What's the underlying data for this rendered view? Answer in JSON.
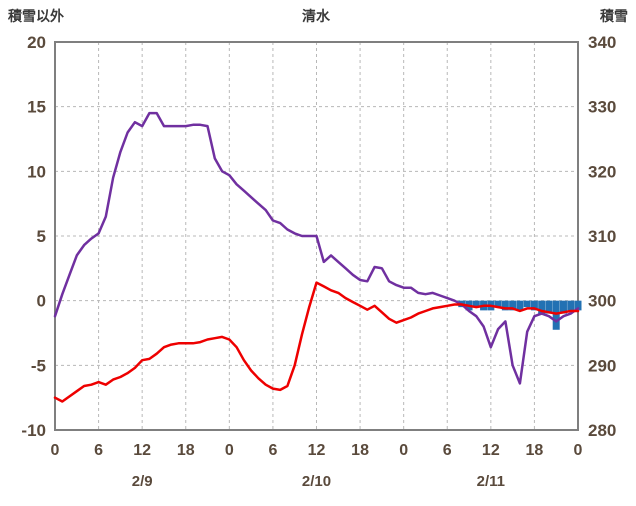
{
  "header": {
    "left": "積雪以外",
    "center": "清水",
    "right": "積雪"
  },
  "colors": {
    "purple_line": "#7030a0",
    "red_line": "#ee0000",
    "snow_bar": "#2271b3",
    "grid": "#b8b8b8",
    "frame": "#7f7f7f",
    "tick_text": "#5a4a3c",
    "background": "#ffffff"
  },
  "chart_data": {
    "type": "line",
    "title": "清水",
    "left_axis": {
      "label": "積雪以外",
      "min": -10,
      "max": 20,
      "tick_step": 5,
      "ticks": [
        20,
        15,
        10,
        5,
        0,
        -5,
        -10
      ]
    },
    "right_axis": {
      "label": "積雪",
      "min": 280,
      "max": 340,
      "tick_step": 10,
      "ticks": [
        340,
        330,
        320,
        310,
        300,
        290,
        280
      ]
    },
    "x_axis": {
      "hours_total": 72,
      "tick_step": 6,
      "tick_labels": [
        "0",
        "6",
        "12",
        "18",
        "0",
        "6",
        "12",
        "18",
        "0",
        "6",
        "12",
        "18",
        "0"
      ],
      "date_labels": [
        {
          "label": "2/9",
          "hour": 12
        },
        {
          "label": "2/10",
          "hour": 36
        },
        {
          "label": "2/11",
          "hour": 60
        }
      ],
      "grid": true
    },
    "series": [
      {
        "name": "purple-line",
        "type": "line",
        "axis": "left",
        "color": "#7030a0",
        "values": [
          -1.2,
          0.5,
          2.0,
          3.5,
          4.3,
          4.8,
          5.2,
          6.5,
          9.5,
          11.5,
          13.0,
          13.8,
          13.5,
          14.5,
          14.5,
          13.5,
          13.5,
          13.5,
          13.5,
          13.6,
          13.6,
          13.5,
          11.0,
          10.0,
          9.7,
          9.0,
          8.5,
          8.0,
          7.5,
          7.0,
          6.2,
          6.0,
          5.5,
          5.2,
          5.0,
          5.0,
          5.0,
          3.0,
          3.5,
          3.0,
          2.5,
          2.0,
          1.6,
          1.5,
          2.6,
          2.5,
          1.5,
          1.2,
          1.0,
          1.0,
          0.6,
          0.5,
          0.6,
          0.4,
          0.2,
          0.0,
          -0.3,
          -0.8,
          -1.2,
          -2.0,
          -3.6,
          -2.2,
          -1.6,
          -5.0,
          -6.4,
          -2.4,
          -1.2,
          -1.0,
          -1.2,
          -1.6,
          -1.2,
          -1.0,
          -0.6
        ]
      },
      {
        "name": "red-line",
        "type": "line",
        "axis": "left",
        "color": "#ee0000",
        "values": [
          -7.5,
          -7.8,
          -7.4,
          -7.0,
          -6.6,
          -6.5,
          -6.3,
          -6.5,
          -6.1,
          -5.9,
          -5.6,
          -5.2,
          -4.6,
          -4.5,
          -4.1,
          -3.6,
          -3.4,
          -3.3,
          -3.3,
          -3.3,
          -3.2,
          -3.0,
          -2.9,
          -2.8,
          -3.0,
          -3.6,
          -4.6,
          -5.4,
          -6.0,
          -6.5,
          -6.8,
          -6.9,
          -6.6,
          -5.0,
          -2.6,
          -0.5,
          1.4,
          1.1,
          0.8,
          0.6,
          0.2,
          -0.1,
          -0.4,
          -0.7,
          -0.4,
          -0.9,
          -1.4,
          -1.7,
          -1.5,
          -1.3,
          -1.0,
          -0.8,
          -0.6,
          -0.5,
          -0.4,
          -0.3,
          -0.3,
          -0.4,
          -0.5,
          -0.4,
          -0.4,
          -0.5,
          -0.6,
          -0.6,
          -0.8,
          -0.6,
          -0.6,
          -0.8,
          -0.9,
          -1.0,
          -0.9,
          -0.8,
          -0.8
        ]
      },
      {
        "name": "snow-depth-bars",
        "type": "bar",
        "axis": "right",
        "color": "#2271b3",
        "baseline": 300,
        "points": [
          {
            "hour": 56,
            "value": 299.0
          },
          {
            "hour": 57,
            "value": 298.5
          },
          {
            "hour": 58,
            "value": 299.0
          },
          {
            "hour": 59,
            "value": 298.5
          },
          {
            "hour": 60,
            "value": 298.5
          },
          {
            "hour": 61,
            "value": 299.0
          },
          {
            "hour": 62,
            "value": 298.5
          },
          {
            "hour": 63,
            "value": 298.5
          },
          {
            "hour": 64,
            "value": 298.5
          },
          {
            "hour": 65,
            "value": 299.0
          },
          {
            "hour": 66,
            "value": 298.5
          },
          {
            "hour": 67,
            "value": 298.0
          },
          {
            "hour": 68,
            "value": 298.0
          },
          {
            "hour": 69,
            "value": 295.5
          },
          {
            "hour": 70,
            "value": 298.0
          },
          {
            "hour": 71,
            "value": 298.5
          },
          {
            "hour": 72,
            "value": 298.5
          }
        ]
      }
    ]
  }
}
